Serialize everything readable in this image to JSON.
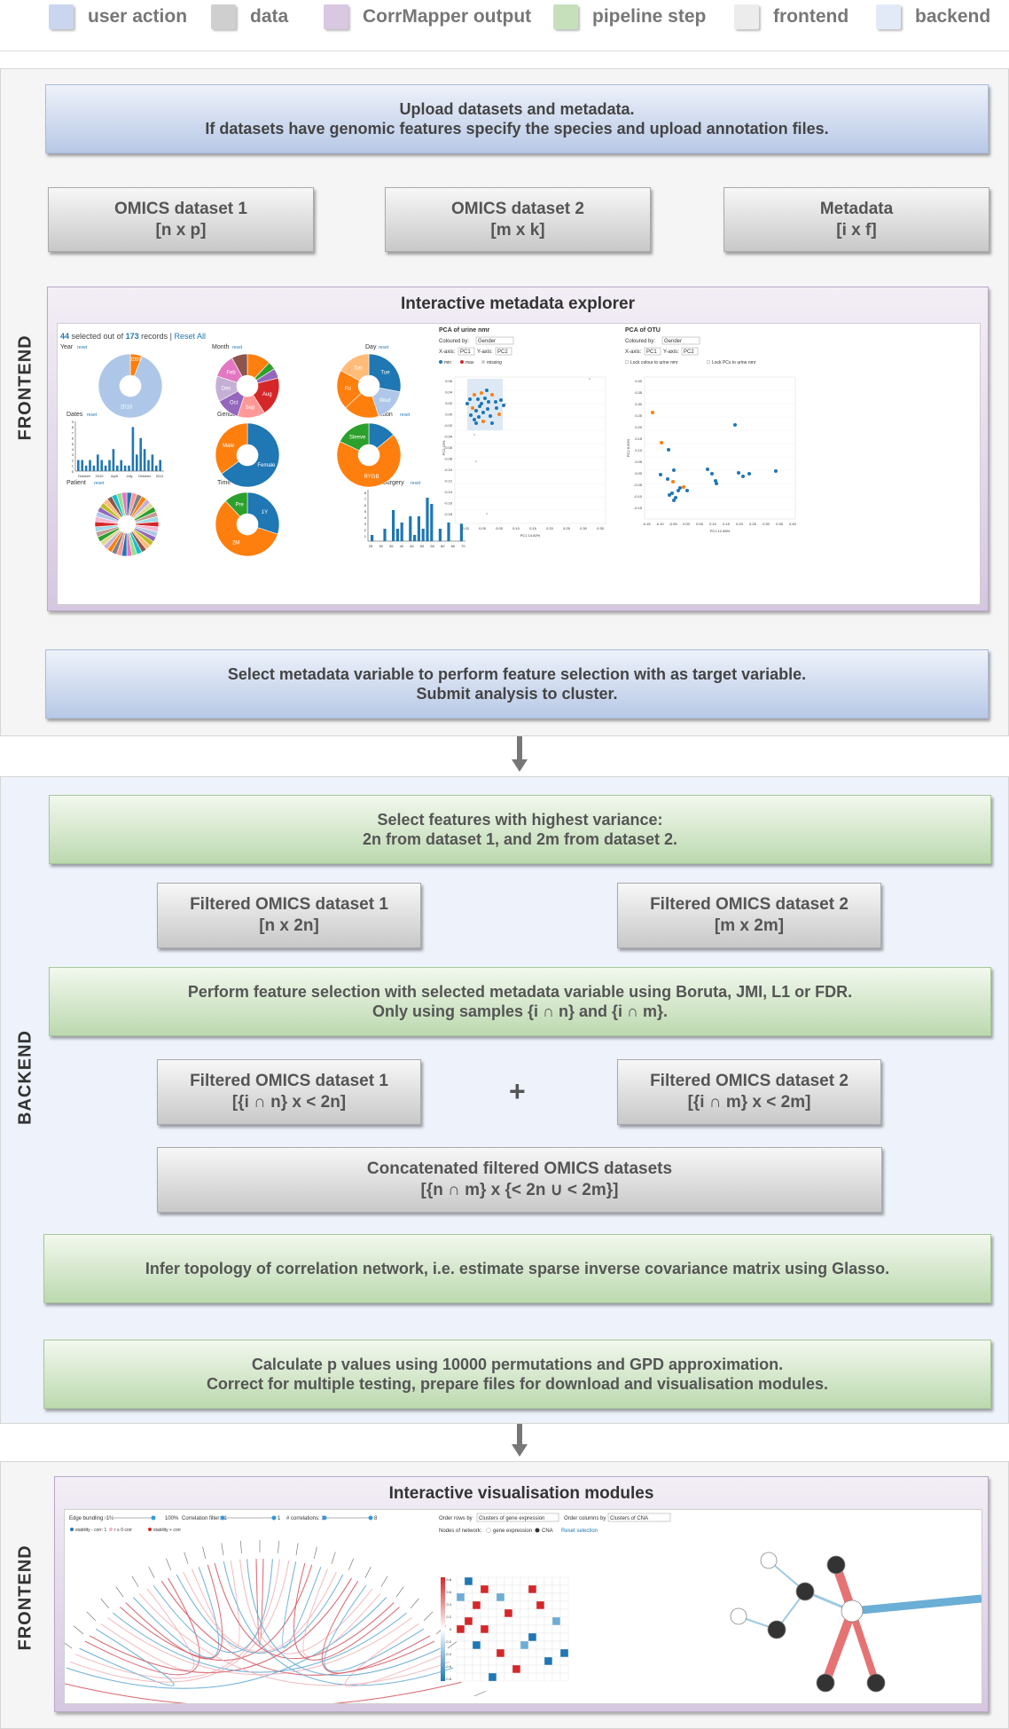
{
  "legend": [
    {
      "label": "user action",
      "color": "#c9d6ee"
    },
    {
      "label": "data",
      "color": "#cfcfcf"
    },
    {
      "label": "CorrMapper output",
      "color": "#d8c8e2"
    },
    {
      "label": "pipeline step",
      "color": "#c6e0bb"
    },
    {
      "label": "frontend",
      "color": "#ececec"
    },
    {
      "label": "backend",
      "color": "#e3eaf7"
    }
  ],
  "sections": {
    "frontend_top": "FRONTEND",
    "backend": "BACKEND",
    "frontend_bottom": "FRONTEND"
  },
  "upload": {
    "line1": "Upload datasets and metadata.",
    "line2": "If datasets have genomic features specify the species and upload annotation files."
  },
  "datasets": [
    {
      "name": "OMICS dataset 1",
      "dims": "[n x p]"
    },
    {
      "name": "OMICS dataset 2",
      "dims": "[m x k]"
    },
    {
      "name": "Metadata",
      "dims": "[i x f]"
    }
  ],
  "explorer": {
    "title": "Interactive metadata explorer",
    "records_selected": "44",
    "records_mid": "selected out of",
    "records_total": "173",
    "records_tail": "records |",
    "reset_all": "Reset All",
    "charts": [
      "Year",
      "Month",
      "Day",
      "Dates",
      "Gender",
      "Operation",
      "Patient",
      "Time",
      "AgeAtSurgery"
    ],
    "reset": "reset",
    "pie_labels": {
      "year": [
        "2009",
        "2010"
      ],
      "month": [
        "Dec",
        "Feb",
        "Oct",
        "Sep",
        "Aug"
      ],
      "day": [
        "Sat",
        "Fri",
        "Tue",
        "Wed"
      ],
      "gender": [
        "Male",
        "Female"
      ],
      "operation": [
        "Sleeve",
        "RYGB"
      ],
      "time": [
        "Pre",
        "1Y",
        "2M"
      ]
    },
    "dates_ticks": [
      "October",
      "2010",
      "April",
      "July",
      "October",
      "2011"
    ],
    "dates_y": [
      "9",
      "8",
      "7",
      "6",
      "5",
      "4",
      "3",
      "2",
      "1",
      "0"
    ],
    "age_ticks": [
      "25",
      "30",
      "35",
      "40",
      "45",
      "50",
      "55",
      "60",
      "65",
      "70"
    ],
    "age_y": [
      "1",
      "2",
      "3",
      "4",
      "5",
      "6",
      "7",
      "8"
    ],
    "pca1": {
      "title": "PCA of urine nmr",
      "coloured_by": "Coloured by:",
      "coloured_value": "Gender",
      "x_axis": "X-axis:",
      "x_value": "PC1",
      "y_axis": "Y-axis:",
      "y_value": "PC2",
      "legend": [
        "min",
        "max",
        "missing"
      ],
      "xlabel": "PC1 14.82%",
      "ylabel": "PC2 10%",
      "x_ticks": [
        "0.03",
        "0.05",
        "0.05",
        "0.10",
        "0.15",
        "0.20",
        "0.25",
        "0.30",
        "0.35"
      ],
      "y_ticks": [
        "0.06",
        "0.04",
        "0.02",
        "0.00",
        "-0.02",
        "-0.04",
        "-0.06",
        "-0.08",
        "-0.10",
        "-0.12",
        "-0.14",
        "-0.16",
        "-0.18"
      ]
    },
    "pca2": {
      "title": "PCA of OTU",
      "coloured_by": "Coloured by:",
      "coloured_value": "Gender",
      "x_axis": "X-axis:",
      "x_value": "PC1",
      "y_axis": "Y-axis:",
      "y_value": "PC2",
      "lock1": "Lock colour to urine nmr",
      "lock2": "Lock PCs to urine nmr",
      "xlabel": "PC1 12.85%",
      "ylabel": "PC2 8.59%",
      "x_ticks": [
        "-0.15",
        "-0.10",
        "-0.05",
        "0.00",
        "0.05",
        "0.10",
        "0.15",
        "0.20",
        "0.25",
        "0.30",
        "0.35",
        "0.40"
      ],
      "y_ticks": [
        "0.40",
        "0.35",
        "0.30",
        "0.25",
        "0.20",
        "0.15",
        "0.10",
        "0.05",
        "0.00",
        "-0.05",
        "-0.10",
        "-0.15"
      ]
    }
  },
  "select_meta": {
    "line1": "Select metadata variable to perform feature selection with as target variable.",
    "line2": "Submit analysis to cluster."
  },
  "variance": {
    "line1": "Select features with highest variance:",
    "line2": "2n from dataset 1, and 2m from dataset 2."
  },
  "filtered1": [
    {
      "name": "Filtered OMICS dataset 1",
      "dims": "[n x 2n]"
    },
    {
      "name": "Filtered OMICS dataset 2",
      "dims": "[m x 2m]"
    }
  ],
  "feature_selection": {
    "line1": "Perform feature selection with selected metadata variable using Boruta, JMI, L1 or FDR.",
    "line2": "Only using samples {i ∩ n} and {i ∩ m}."
  },
  "filtered2": [
    {
      "name": "Filtered OMICS dataset 1",
      "dims": "[{i ∩ n} x < 2n]"
    },
    {
      "name": "Filtered OMICS dataset 2",
      "dims": "[{i ∩ m} x < 2m]"
    }
  ],
  "plus": "+",
  "concat": {
    "name": "Concatenated filtered OMICS datasets",
    "dims": "[{n ∩ m} x {< 2n ∪ < 2m}]"
  },
  "glasso": "Infer topology of correlation network, i.e. estimate sparse inverse covariance matrix using Glasso.",
  "pvalues": {
    "line1": "Calculate p values using 10000 permutations and GPD approximation.",
    "line2": "Correct for multiple testing, prepare files for download and visualisation modules."
  },
  "viz": {
    "title": "Interactive visualisation modules",
    "edge_bundling": "Edge bundling: 1%",
    "edge_pct": "100%",
    "corr_filter": "Correlation filter: -1",
    "corr_max": "1",
    "num_corr": "# correlations: 1",
    "num_max": "8",
    "stab": [
      "stability - corr: 1",
      "r ≥ 0 corr",
      "stability + corr"
    ],
    "order_rows": "Order rows by",
    "order_rows_value": "Clusters of gene expression",
    "order_cols": "Order columns by",
    "order_cols_value": "Clusters of CNA",
    "nodes": "Nodes of network:",
    "node_types": [
      "gene expression",
      "CNA"
    ],
    "reset_selection": "Reset selection",
    "hm_scale": [
      "0.8",
      "0.6",
      "0.4",
      "0.2",
      "0",
      "-0.2",
      "-0.4",
      "-0.6",
      "-0.8"
    ]
  }
}
